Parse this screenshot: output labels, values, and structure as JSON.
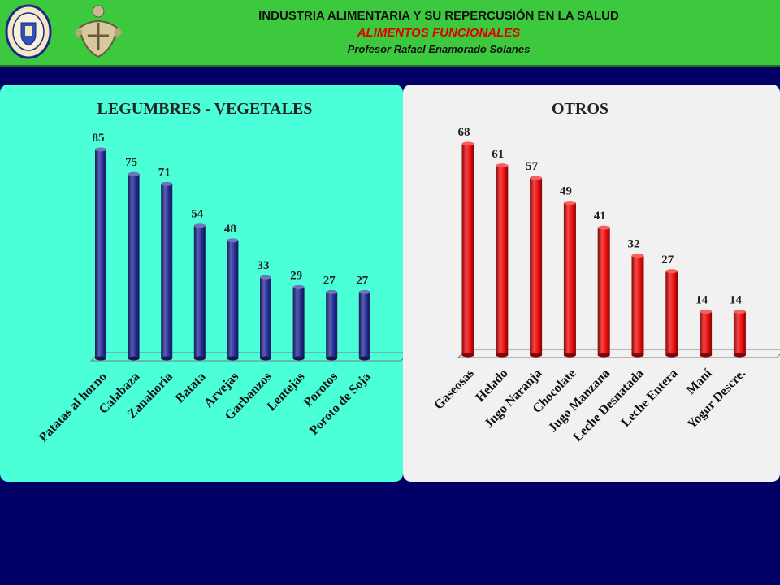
{
  "header": {
    "title": "INDUSTRIA ALIMENTARIA Y SU REPERCUSIÓN EN LA SALUD",
    "subtitle": "ALIMENTOS FUNCIONALES",
    "professor": "Profesor Rafael Enamorado Solanes",
    "background_color": "#3dc93d",
    "subtitle_color": "#e00000",
    "logos": [
      "university-seal-icon",
      "crest-icon"
    ]
  },
  "chart_data": [
    {
      "type": "bar",
      "title": "LEGUMBRES - VEGETALES",
      "categories": [
        "Patatas al horno",
        "Calabaza",
        "Zanahoria",
        "Batata",
        "Arvejas",
        "Garbanzos",
        "Lentejas",
        "Porotos",
        "Poroto de Soja"
      ],
      "values": [
        85,
        75,
        71,
        54,
        48,
        33,
        29,
        27,
        27
      ],
      "xlabel": "",
      "ylabel": "",
      "ylim": [
        0,
        85
      ],
      "grid": false,
      "legend": "none",
      "bar_color": "#232b96",
      "panel_color": "#4bffd8",
      "style": "3d-cylinder"
    },
    {
      "type": "bar",
      "title": "OTROS",
      "categories": [
        "Gaseosas",
        "Helado",
        "Jugo Naranja",
        "Chocolate",
        "Jugo Manzana",
        "Leche Desnatada",
        "Leche Entera",
        "Maní",
        "Yogur Descre."
      ],
      "values": [
        68,
        61,
        57,
        49,
        41,
        32,
        27,
        14,
        14
      ],
      "xlabel": "",
      "ylabel": "",
      "ylim": [
        0,
        68
      ],
      "grid": false,
      "legend": "none",
      "bar_color": "#ee0b0b",
      "panel_color": "#f1f1f1",
      "style": "3d-cylinder"
    }
  ],
  "background_color": "#000066"
}
